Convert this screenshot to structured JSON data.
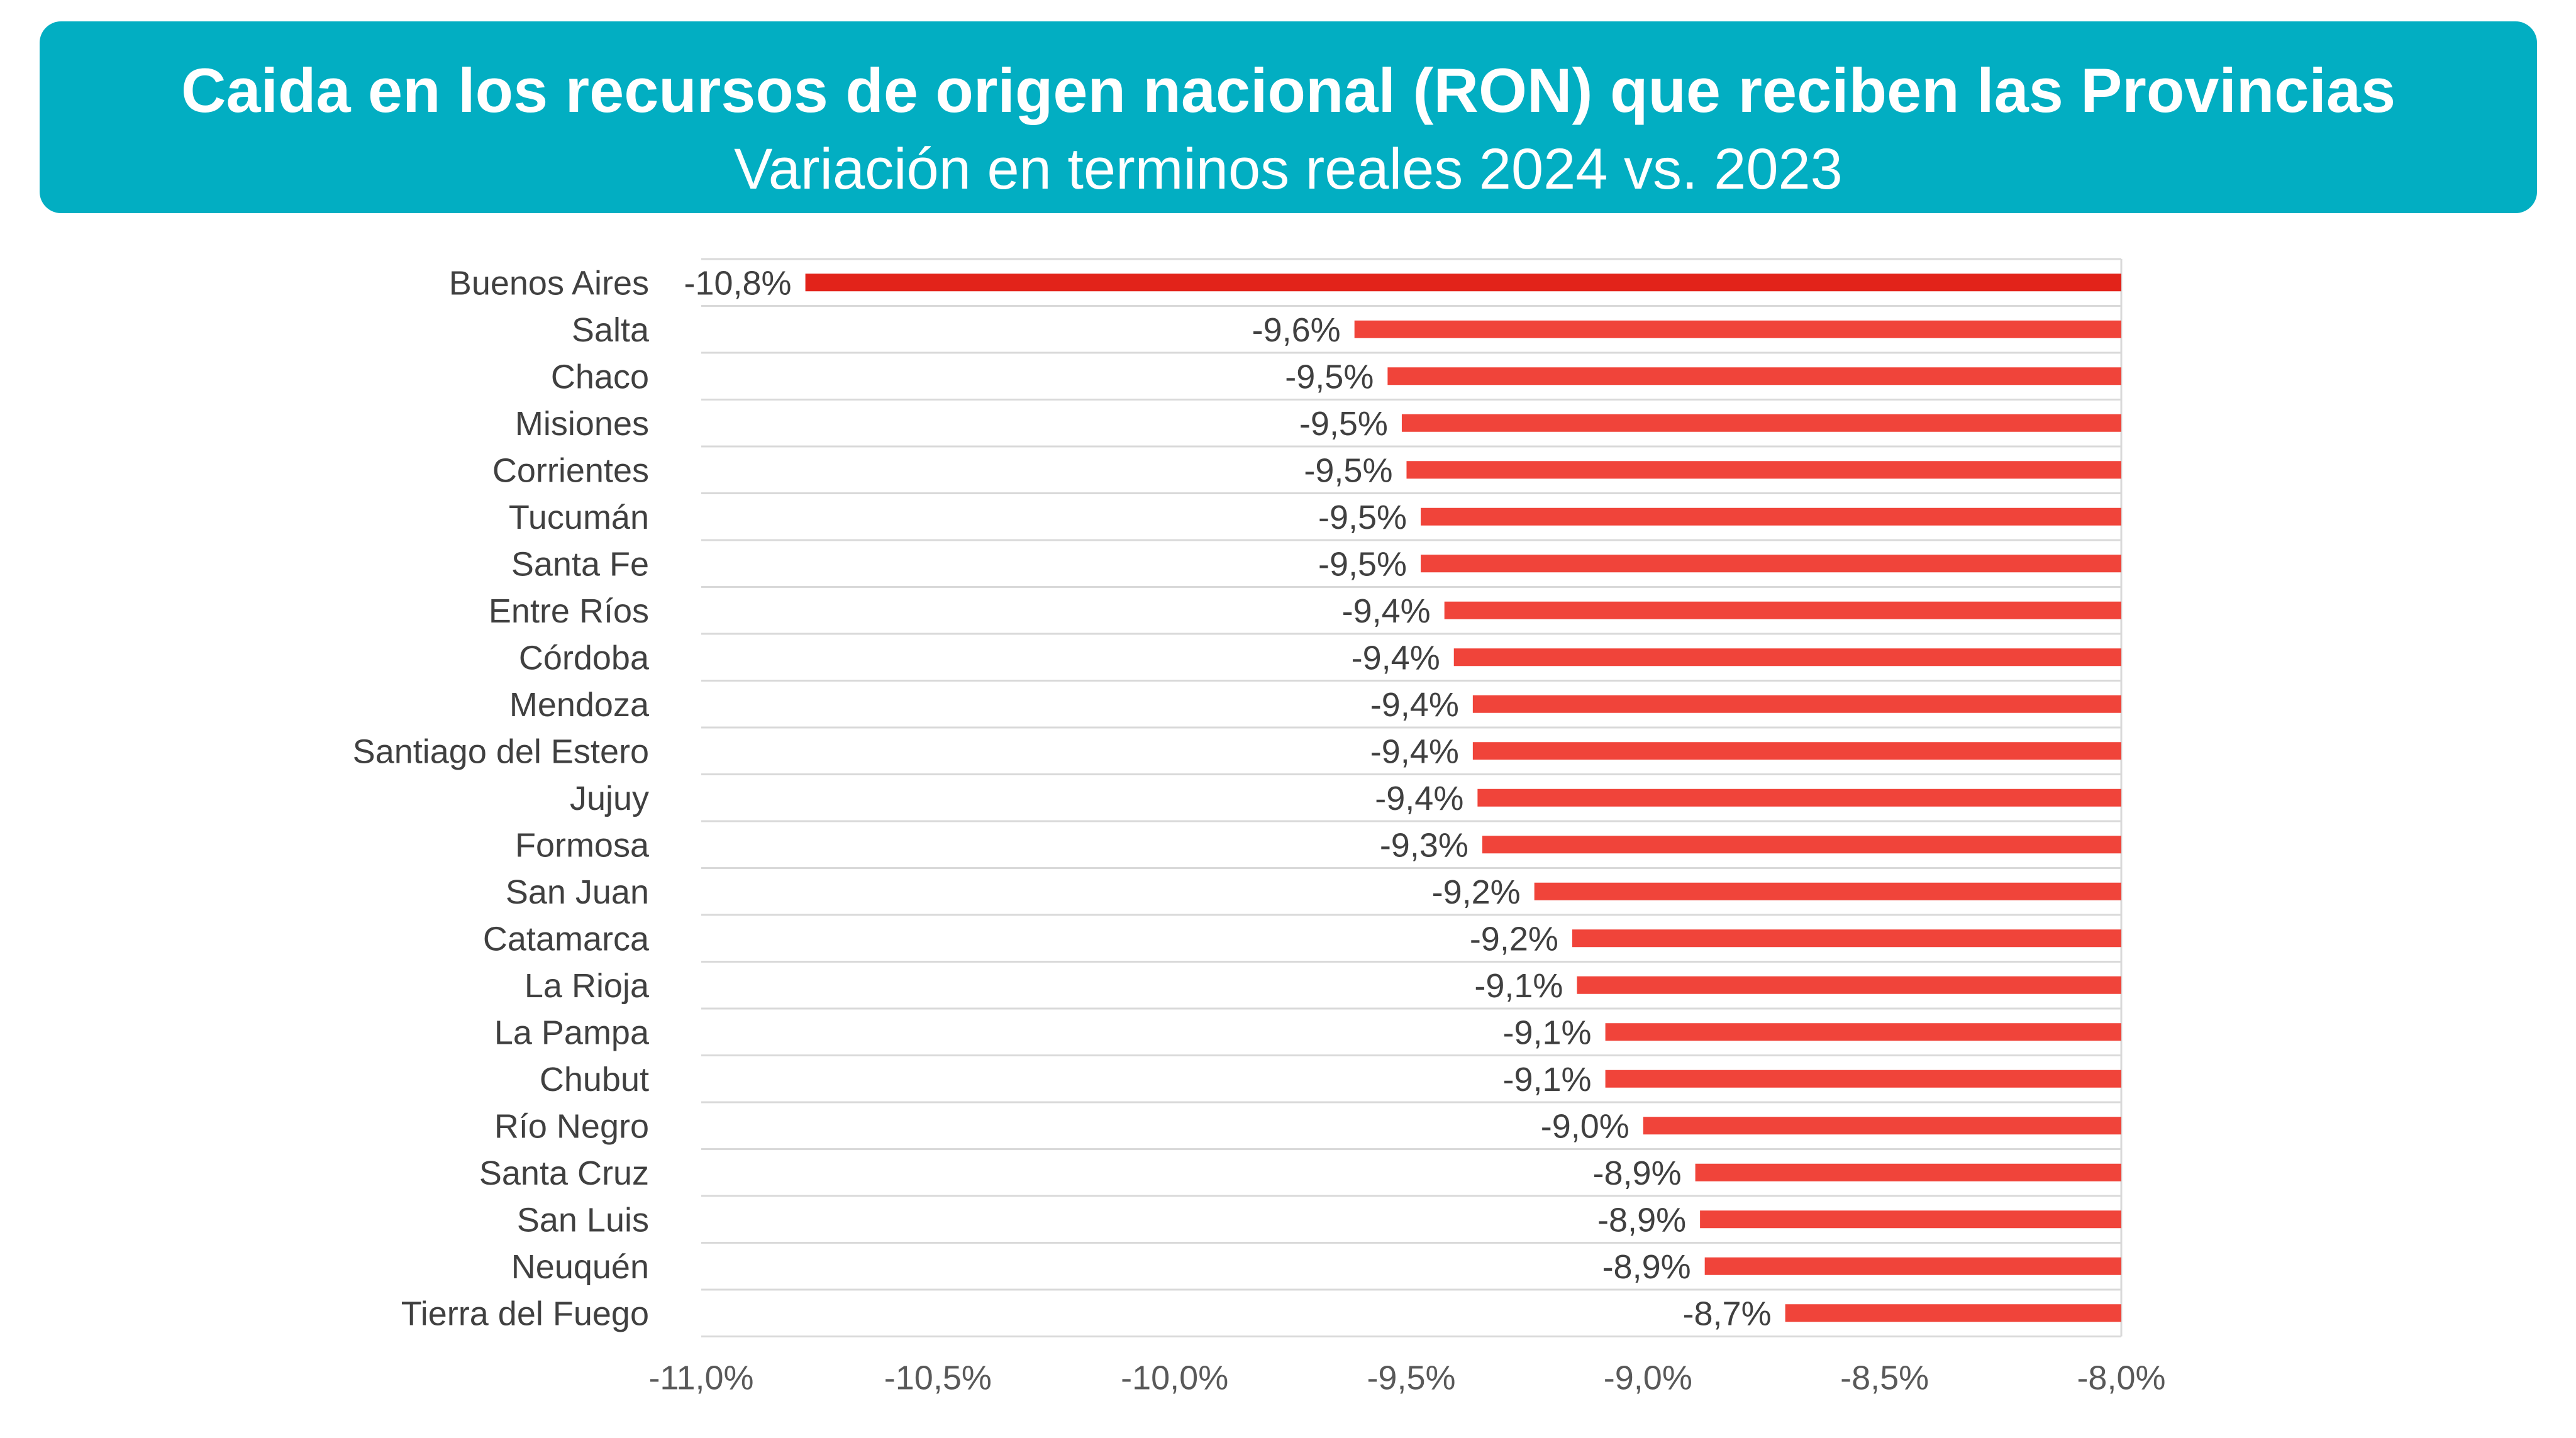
{
  "header": {
    "title": "Caida en los recursos de origen nacional (RON) que reciben las Provincias",
    "subtitle": "Variación en terminos reales 2024 vs. 2023"
  },
  "colors": {
    "header_bg": "#02aec2",
    "bar": "#f0443a",
    "bar_highlight": "#e2231a",
    "grid": "#d9d9d9"
  },
  "chart_data": {
    "type": "bar",
    "orientation": "horizontal",
    "title": "Caida en los recursos de origen nacional (RON) que reciben las Provincias",
    "subtitle": "Variación en terminos reales 2024 vs. 2023",
    "categories": [
      "Buenos Aires",
      "Salta",
      "Chaco",
      "Misiones",
      "Corrientes",
      "Tucumán",
      "Santa Fe",
      "Entre Ríos",
      "Córdoba",
      "Mendoza",
      "Santiago del Estero",
      "Jujuy",
      "Formosa",
      "San Juan",
      "Catamarca",
      "La Rioja",
      "La Pampa",
      "Chubut",
      "Río Negro",
      "Santa Cruz",
      "San Luis",
      "Neuquén",
      "Tierra del Fuego"
    ],
    "values": [
      -10.78,
      -9.62,
      -9.55,
      -9.52,
      -9.51,
      -9.48,
      -9.48,
      -9.43,
      -9.41,
      -9.37,
      -9.37,
      -9.36,
      -9.35,
      -9.24,
      -9.16,
      -9.15,
      -9.09,
      -9.09,
      -9.01,
      -8.9,
      -8.89,
      -8.88,
      -8.71
    ],
    "data_labels": [
      "-10,8%",
      "-9,6%",
      "-9,5%",
      "-9,5%",
      "-9,5%",
      "-9,5%",
      "-9,5%",
      "-9,4%",
      "-9,4%",
      "-9,4%",
      "-9,4%",
      "-9,4%",
      "-9,3%",
      "-9,2%",
      "-9,2%",
      "-9,1%",
      "-9,1%",
      "-9,1%",
      "-9,0%",
      "-8,9%",
      "-8,9%",
      "-8,9%",
      "-8,7%"
    ],
    "xlim": [
      -11.0,
      -8.0
    ],
    "xticks": [
      -11.0,
      -10.5,
      -10.0,
      -9.5,
      -9.0,
      -8.5,
      -8.0
    ],
    "xtick_labels": [
      "-11,0%",
      "-10,5%",
      "-10,0%",
      "-9,5%",
      "-9,0%",
      "-8,5%",
      "-8,0%"
    ],
    "highlight": "Buenos Aires",
    "grid": "horizontal separators",
    "legend": "none"
  }
}
